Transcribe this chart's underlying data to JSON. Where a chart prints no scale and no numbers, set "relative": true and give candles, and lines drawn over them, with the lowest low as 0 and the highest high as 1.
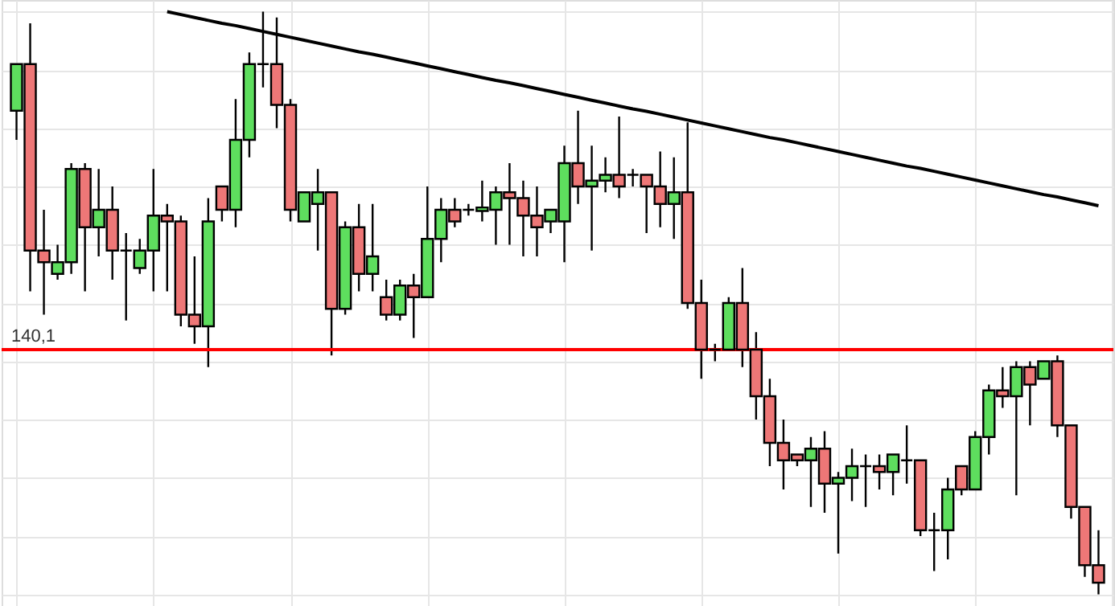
{
  "chart_data": {
    "type": "candlestick",
    "relative": true,
    "tick_labels": false,
    "grid": true,
    "categories": [
      null,
      null,
      null,
      null,
      null,
      null,
      null,
      null,
      null,
      null,
      null,
      null,
      null,
      null,
      null,
      null,
      null,
      null,
      null,
      null,
      null,
      null,
      null,
      null,
      null,
      null,
      null,
      null,
      null,
      null,
      null,
      null,
      null,
      null,
      null,
      null,
      null,
      null,
      null,
      null,
      null,
      null,
      null,
      null,
      null,
      null,
      null,
      null,
      null,
      null,
      null,
      null,
      null,
      null,
      null,
      null,
      null,
      null,
      null,
      null,
      null,
      null,
      null,
      null,
      null,
      null,
      null,
      null,
      null,
      null,
      null,
      null,
      null,
      null,
      null,
      null,
      null,
      null,
      null,
      null
    ],
    "ohlc": [
      [
        0.83,
        0.91,
        0.78,
        0.91
      ],
      [
        0.91,
        0.98,
        0.52,
        0.59
      ],
      [
        0.59,
        0.66,
        0.48,
        0.57
      ],
      [
        0.55,
        0.6,
        0.54,
        0.57
      ],
      [
        0.57,
        0.74,
        0.55,
        0.73
      ],
      [
        0.73,
        0.74,
        0.52,
        0.63
      ],
      [
        0.63,
        0.73,
        0.58,
        0.66
      ],
      [
        0.66,
        0.7,
        0.54,
        0.59
      ],
      [
        0.59,
        0.62,
        0.47,
        0.59
      ],
      [
        0.56,
        0.61,
        0.55,
        0.59
      ],
      [
        0.59,
        0.73,
        0.52,
        0.65
      ],
      [
        0.65,
        0.67,
        0.52,
        0.64
      ],
      [
        0.64,
        0.65,
        0.46,
        0.48
      ],
      [
        0.48,
        0.58,
        0.43,
        0.46
      ],
      [
        0.46,
        0.68,
        0.39,
        0.64
      ],
      [
        0.7,
        0.7,
        0.64,
        0.66
      ],
      [
        0.66,
        0.85,
        0.63,
        0.78
      ],
      [
        0.78,
        0.93,
        0.75,
        0.91
      ],
      [
        0.91,
        1.0,
        0.87,
        0.91
      ],
      [
        0.91,
        0.99,
        0.8,
        0.84
      ],
      [
        0.84,
        0.85,
        0.64,
        0.66
      ],
      [
        0.64,
        0.69,
        0.64,
        0.69
      ],
      [
        0.67,
        0.73,
        0.59,
        0.69
      ],
      [
        0.69,
        0.69,
        0.41,
        0.49
      ],
      [
        0.49,
        0.64,
        0.48,
        0.63
      ],
      [
        0.63,
        0.67,
        0.52,
        0.55
      ],
      [
        0.55,
        0.67,
        0.52,
        0.58
      ],
      [
        0.51,
        0.54,
        0.47,
        0.48
      ],
      [
        0.48,
        0.54,
        0.47,
        0.53
      ],
      [
        0.53,
        0.55,
        0.44,
        0.51
      ],
      [
        0.51,
        0.7,
        0.51,
        0.61
      ],
      [
        0.61,
        0.68,
        0.57,
        0.66
      ],
      [
        0.66,
        0.68,
        0.63,
        0.64
      ],
      [
        0.66,
        0.67,
        0.65,
        0.66
      ],
      [
        0.658,
        0.71,
        0.64,
        0.664
      ],
      [
        0.66,
        0.7,
        0.6,
        0.69
      ],
      [
        0.69,
        0.74,
        0.6,
        0.68
      ],
      [
        0.68,
        0.71,
        0.58,
        0.65
      ],
      [
        0.65,
        0.7,
        0.58,
        0.63
      ],
      [
        0.64,
        0.66,
        0.62,
        0.66
      ],
      [
        0.64,
        0.77,
        0.57,
        0.74
      ],
      [
        0.74,
        0.83,
        0.67,
        0.7
      ],
      [
        0.7,
        0.77,
        0.59,
        0.71
      ],
      [
        0.71,
        0.75,
        0.69,
        0.72
      ],
      [
        0.72,
        0.82,
        0.68,
        0.7
      ],
      [
        0.72,
        0.73,
        0.7,
        0.72
      ],
      [
        0.72,
        0.72,
        0.62,
        0.7
      ],
      [
        0.7,
        0.76,
        0.63,
        0.67
      ],
      [
        0.67,
        0.75,
        0.61,
        0.69
      ],
      [
        0.69,
        0.81,
        0.49,
        0.5
      ],
      [
        0.5,
        0.54,
        0.37,
        0.42
      ],
      [
        0.42,
        0.43,
        0.4,
        0.42
      ],
      [
        0.42,
        0.51,
        0.42,
        0.5
      ],
      [
        0.5,
        0.56,
        0.39,
        0.42
      ],
      [
        0.42,
        0.45,
        0.3,
        0.34
      ],
      [
        0.34,
        0.37,
        0.22,
        0.26
      ],
      [
        0.26,
        0.3,
        0.18,
        0.23
      ],
      [
        0.24,
        0.24,
        0.22,
        0.23
      ],
      [
        0.23,
        0.27,
        0.15,
        0.25
      ],
      [
        0.25,
        0.28,
        0.14,
        0.19
      ],
      [
        0.19,
        0.21,
        0.07,
        0.2
      ],
      [
        0.2,
        0.25,
        0.16,
        0.22
      ],
      [
        0.22,
        0.24,
        0.15,
        0.22
      ],
      [
        0.22,
        0.24,
        0.18,
        0.21
      ],
      [
        0.21,
        0.24,
        0.17,
        0.24
      ],
      [
        0.23,
        0.29,
        0.19,
        0.23
      ],
      [
        0.23,
        0.23,
        0.1,
        0.11
      ],
      [
        0.11,
        0.14,
        0.04,
        0.11
      ],
      [
        0.11,
        0.2,
        0.06,
        0.18
      ],
      [
        0.22,
        0.22,
        0.17,
        0.18
      ],
      [
        0.18,
        0.28,
        0.18,
        0.27
      ],
      [
        0.27,
        0.36,
        0.24,
        0.35
      ],
      [
        0.35,
        0.39,
        0.32,
        0.34
      ],
      [
        0.34,
        0.4,
        0.17,
        0.39
      ],
      [
        0.39,
        0.4,
        0.29,
        0.36
      ],
      [
        0.37,
        0.4,
        0.37,
        0.4
      ],
      [
        0.4,
        0.41,
        0.27,
        0.29
      ],
      [
        0.29,
        0.29,
        0.13,
        0.15
      ],
      [
        0.15,
        0.15,
        0.03,
        0.05
      ],
      [
        0.05,
        0.11,
        0,
        0.02
      ]
    ],
    "colors": [
      "#5ede5e",
      "#ee7777",
      "#ee7777",
      "#5ede5e",
      "#5ede5e",
      "#ee7777",
      "#5ede5e",
      "#ee7777",
      "#000000",
      "#5ede5e",
      "#5ede5e",
      "#ee7777",
      "#ee7777",
      "#ee7777",
      "#5ede5e",
      "#ee7777",
      "#5ede5e",
      "#5ede5e",
      "#000000",
      "#ee7777",
      "#ee7777",
      "#5ede5e",
      "#5ede5e",
      "#ee7777",
      "#5ede5e",
      "#ee7777",
      "#5ede5e",
      "#ee7777",
      "#5ede5e",
      "#ee7777",
      "#5ede5e",
      "#5ede5e",
      "#ee7777",
      "#000000",
      "#5ede5e",
      "#5ede5e",
      "#ee7777",
      "#ee7777",
      "#ee7777",
      "#5ede5e",
      "#5ede5e",
      "#ee7777",
      "#5ede5e",
      "#5ede5e",
      "#ee7777",
      "#000000",
      "#ee7777",
      "#ee7777",
      "#5ede5e",
      "#ee7777",
      "#ee7777",
      "#000000",
      "#5ede5e",
      "#ee7777",
      "#ee7777",
      "#ee7777",
      "#ee7777",
      "#ee7777",
      "#5ede5e",
      "#ee7777",
      "#5ede5e",
      "#5ede5e",
      "#000000",
      "#ee7777",
      "#5ede5e",
      "#000000",
      "#ee7777",
      "#000000",
      "#5ede5e",
      "#ee7777",
      "#5ede5e",
      "#5ede5e",
      "#ee7777",
      "#5ede5e",
      "#ee7777",
      "#5ede5e",
      "#ee7777",
      "#ee7777",
      "#ee7777",
      "#ee7777"
    ],
    "series": [
      {
        "type": "line",
        "color": "#000000",
        "values": [
          null,
          null,
          null,
          null,
          null,
          null,
          null,
          null,
          null,
          null,
          null,
          1,
          0.995,
          0.99,
          0.985,
          0.98,
          0.976,
          0.971,
          0.966,
          0.961,
          0.956,
          0.951,
          0.946,
          0.941,
          0.936,
          0.931,
          0.927,
          0.922,
          0.917,
          0.912,
          0.907,
          0.902,
          0.897,
          0.892,
          0.887,
          0.882,
          0.878,
          0.873,
          0.868,
          0.863,
          0.858,
          0.853,
          0.848,
          0.843,
          0.838,
          0.833,
          0.829,
          0.824,
          0.819,
          0.814,
          0.809,
          0.804,
          0.799,
          0.794,
          0.789,
          0.784,
          0.78,
          0.775,
          0.77,
          0.765,
          0.76,
          0.755,
          0.75,
          0.745,
          0.74,
          0.735,
          0.731,
          0.726,
          0.721,
          0.716,
          0.711,
          0.706,
          0.701,
          0.696,
          0.691,
          0.686,
          0.682,
          0.677,
          0.672,
          0.667
        ]
      }
    ],
    "ref_lines": [
      {
        "axis": "y",
        "value": 0.42,
        "color": "#ff0000"
      }
    ],
    "annotations": [
      "140,1"
    ]
  }
}
